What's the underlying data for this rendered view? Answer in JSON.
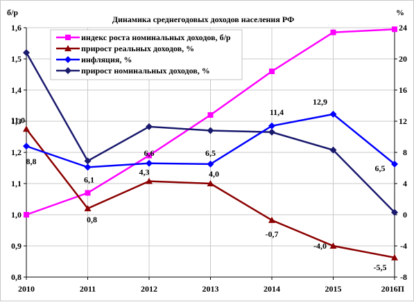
{
  "chart_data": {
    "type": "line",
    "title": "Динамика среднегодовых доходов населения РФ",
    "left_axis_unit": "б/р",
    "right_axis_unit": "%",
    "categories": [
      "2010",
      "2011",
      "2012",
      "2013",
      "2014",
      "2015",
      "2016П"
    ],
    "y_left": {
      "min": 0.8,
      "max": 1.6,
      "step": 0.1,
      "tick_labels": [
        "0,8",
        "0,9",
        "1,0",
        "1,1",
        "1,2",
        "1,3",
        "1,4",
        "1,5",
        "1,6"
      ]
    },
    "y_right": {
      "min": -8,
      "max": 24,
      "step": 4,
      "tick_labels": [
        "-8",
        "-4",
        "0",
        "4",
        "8",
        "12",
        "16",
        "20",
        "24"
      ]
    },
    "grid": true,
    "legend_position": "top-left",
    "series": [
      {
        "name": "индекс роста номинальных доходов, б/р",
        "axis": "left",
        "color": "#ff00ff",
        "marker": "square",
        "values": [
          1.0,
          1.07,
          1.19,
          1.32,
          1.46,
          1.585,
          1.595
        ],
        "labels": []
      },
      {
        "name": "прирост реальных доходов, %",
        "axis": "right",
        "color": "#8b0000",
        "marker": "triangle",
        "values": [
          11.0,
          0.8,
          4.3,
          4.0,
          -0.7,
          -4.0,
          -5.5
        ],
        "labels": [
          "11,0",
          "0,8",
          "4,3",
          "4,0",
          "-0,7",
          "-4,0",
          "-5,5"
        ]
      },
      {
        "name": "инфляция, %",
        "axis": "right",
        "color": "#0000ff",
        "marker": "diamond",
        "values": [
          8.8,
          6.1,
          6.6,
          6.5,
          11.4,
          12.9,
          6.5
        ],
        "labels": [
          "8,8",
          "6,1",
          "6,6",
          "6,5",
          "11,4",
          "12,9",
          "6,5"
        ]
      },
      {
        "name": "прирост номинальных доходов, %",
        "axis": "right",
        "color": "#1a1a6e",
        "marker": "diamond",
        "values": [
          20.8,
          6.9,
          11.3,
          10.8,
          10.6,
          8.3,
          0.3
        ],
        "labels": []
      }
    ]
  }
}
